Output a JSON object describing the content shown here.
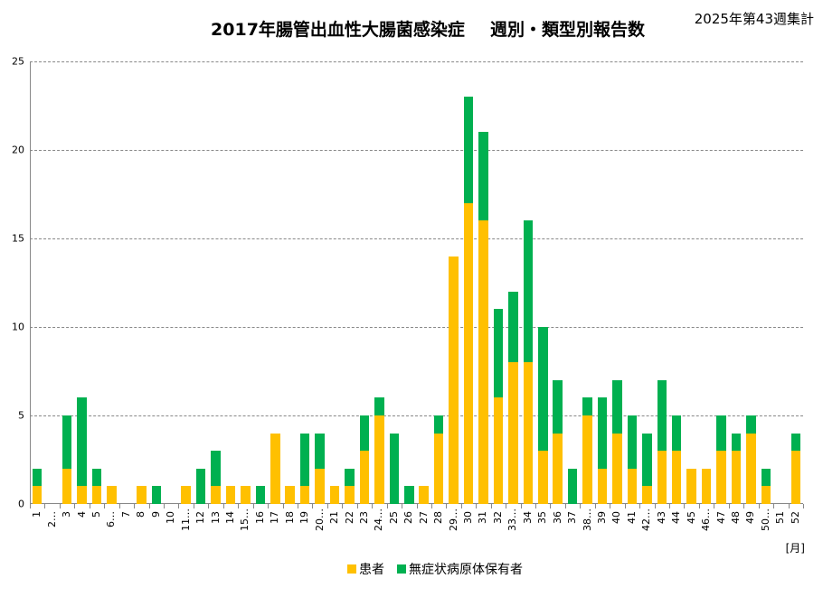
{
  "header": {
    "title_part1": "2017年腸管出血性大腸菌感染症",
    "title_part2": "週別・類型別報告数",
    "subtitle": "2025年第43週集計"
  },
  "axis": {
    "x_unit": "[月]"
  },
  "legend": [
    {
      "label": "患者",
      "color": "#FFC000"
    },
    {
      "label": "無症状病原体保有者",
      "color": "#00B050"
    }
  ],
  "chart_data": {
    "type": "bar",
    "stacked": true,
    "title": "2017年腸管出血性大腸菌感染症 週別・類型別報告数",
    "subtitle": "2025年第43週集計",
    "xlabel": "[月]",
    "ylabel": "",
    "ylim": [
      0,
      25
    ],
    "yticks": [
      0,
      5,
      10,
      15,
      20,
      25
    ],
    "grid": true,
    "legend_position": "bottom",
    "categories": [
      "1",
      "2…",
      "3",
      "4",
      "5",
      "6…",
      "7",
      "8",
      "9",
      "10",
      "11…",
      "12",
      "13",
      "14",
      "15…",
      "16",
      "17",
      "18",
      "19",
      "20…",
      "21",
      "22",
      "23",
      "24…",
      "25",
      "26",
      "27",
      "28",
      "29…",
      "30",
      "31",
      "32",
      "33…",
      "34",
      "35",
      "36",
      "37",
      "38…",
      "39",
      "40",
      "41",
      "42…",
      "43",
      "44",
      "45",
      "46…",
      "47",
      "48",
      "49",
      "50…",
      "51",
      "52"
    ],
    "series": [
      {
        "name": "患者",
        "color": "#FFC000",
        "values": [
          1,
          0,
          2,
          1,
          1,
          1,
          0,
          1,
          0,
          0,
          1,
          0,
          1,
          1,
          1,
          0,
          4,
          1,
          1,
          2,
          1,
          1,
          3,
          5,
          0,
          0,
          1,
          4,
          14,
          17,
          16,
          6,
          8,
          8,
          3,
          4,
          0,
          5,
          2,
          4,
          2,
          1,
          3,
          3,
          2,
          2,
          3,
          3,
          4,
          1,
          0,
          3
        ]
      },
      {
        "name": "無症状病原体保有者",
        "color": "#00B050",
        "values": [
          1,
          0,
          3,
          5,
          1,
          0,
          0,
          0,
          1,
          0,
          0,
          2,
          2,
          0,
          0,
          1,
          0,
          0,
          3,
          2,
          0,
          1,
          2,
          1,
          4,
          1,
          0,
          1,
          0,
          6,
          5,
          5,
          4,
          8,
          7,
          3,
          2,
          1,
          4,
          3,
          3,
          3,
          4,
          2,
          0,
          0,
          2,
          1,
          1,
          1,
          0,
          1
        ]
      }
    ]
  }
}
